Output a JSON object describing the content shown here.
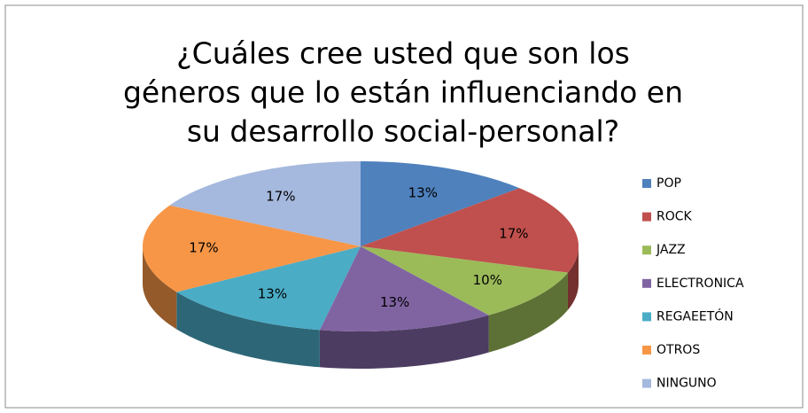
{
  "chart_data": {
    "type": "pie",
    "title": [
      "¿Cuáles cree usted que son los",
      "géneros que lo están influenciando en",
      "su desarrollo social-personal?"
    ],
    "categories": [
      "POP",
      "ROCK",
      "JAZZ",
      "ELECTRONICA",
      "REGAEETÓN",
      "OTROS",
      "NINGUNO"
    ],
    "values": [
      13,
      17,
      10,
      13,
      13,
      17,
      17
    ],
    "value_labels": [
      "13%",
      "17%",
      "10%",
      "13%",
      "13%",
      "17%",
      "17%"
    ],
    "colors": [
      "#4f81bd",
      "#c0504d",
      "#9bbb59",
      "#8064a2",
      "#4bacc6",
      "#f79646",
      "#a5b8dd"
    ],
    "legend": "right"
  }
}
